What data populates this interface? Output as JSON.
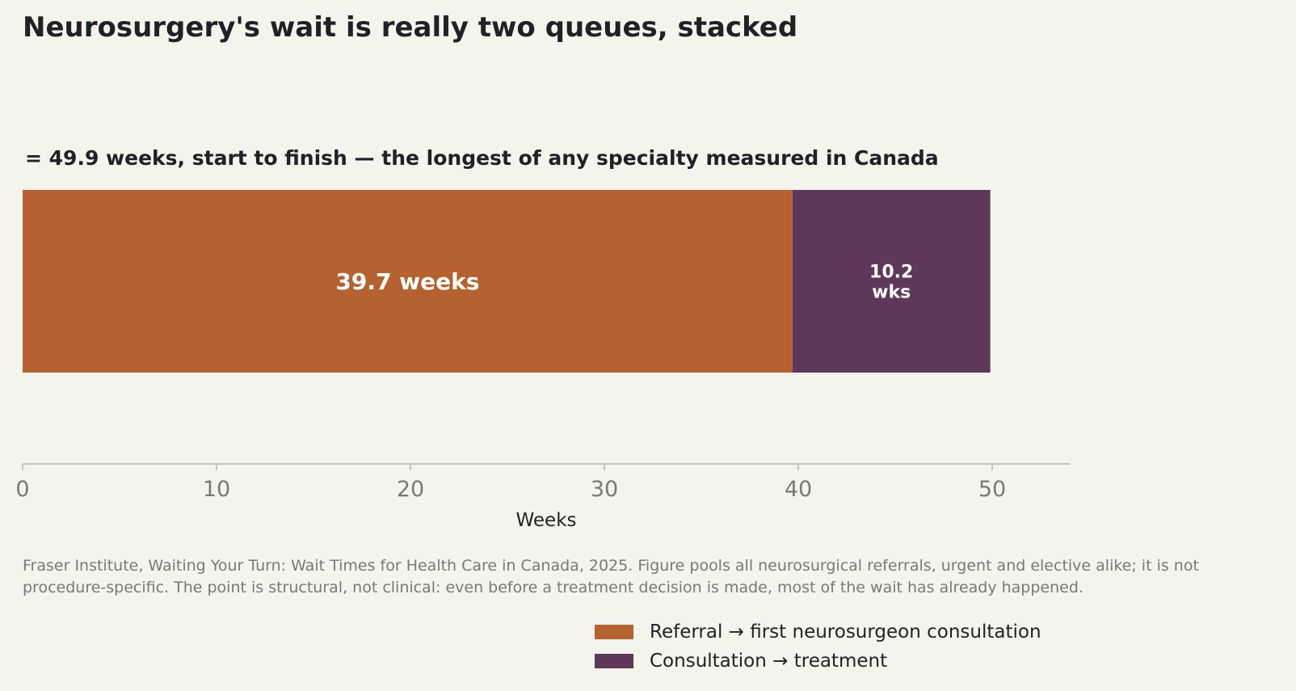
{
  "chart_data": {
    "type": "bar",
    "orientation": "horizontal",
    "stacked": true,
    "title": "Neurosurgery's wait is really two queues, stacked",
    "annotation": "= 49.9 weeks, start to finish — the longest of any specialty measured in Canada",
    "xlabel": "Weeks",
    "xlim": [
      0,
      54
    ],
    "xticks": [
      0,
      10,
      20,
      30,
      40,
      50
    ],
    "tick_labels": [
      "0",
      "10",
      "20",
      "30",
      "40",
      "50"
    ],
    "grid": false,
    "legend_placement": "bottom-right",
    "series": [
      {
        "name": "Referral → first neurosurgeon consultation",
        "value": 39.7,
        "label_lines": [
          "39.7 weeks"
        ],
        "color": "#b4622f"
      },
      {
        "name": "Consultation → treatment",
        "value": 10.2,
        "label_lines": [
          "10.2",
          "wks"
        ],
        "color": "#5e3858"
      }
    ],
    "total": 49.9,
    "source_note": "Fraser Institute, Waiting Your Turn: Wait Times for Health Care in Canada, 2025. Figure pools all neurosurgical referrals, urgent and elective alike; it is not procedure-specific. The point is structural, not clinical: even before a treatment decision is made, most of the wait has already happened."
  }
}
